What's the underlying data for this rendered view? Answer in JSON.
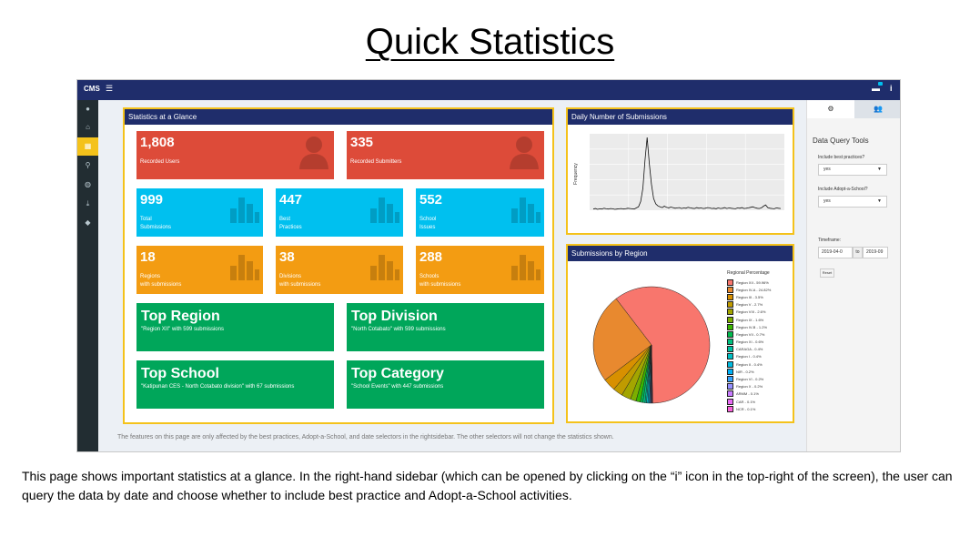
{
  "slide": {
    "title": "Quick Statistics",
    "description": "This page shows important statistics at a glance. In the right-hand sidebar (which can be opened by clicking on the “i” icon in the top-right of the screen), the user can query the data by date and choose whether to include best practice and Adopt-a-School activities."
  },
  "app": {
    "brand": "CMS",
    "menu_icon": "hamburger-icon",
    "info_icon": "info-icon",
    "notification_icon": "notification-icon"
  },
  "sidebar": {
    "items": [
      {
        "icon": "circle-icon"
      },
      {
        "icon": "home-icon"
      },
      {
        "icon": "dashboard-icon",
        "active": true
      },
      {
        "icon": "search-icon"
      },
      {
        "icon": "globe-icon"
      },
      {
        "icon": "download-icon"
      },
      {
        "icon": "tag-icon"
      }
    ]
  },
  "stats": {
    "header": "Statistics at a Glance",
    "users": {
      "value": "1,808",
      "label": "Recorded Users"
    },
    "submitters": {
      "value": "335",
      "label": "Recorded Submitters"
    },
    "total_submissions": {
      "value": "999",
      "line1": "Total",
      "line2": "Submissions"
    },
    "best_practices": {
      "value": "447",
      "line1": "Best",
      "line2": "Practices"
    },
    "school_issues": {
      "value": "552",
      "line1": "School",
      "line2": "Issues"
    },
    "regions": {
      "value": "18",
      "line1": "Regions",
      "line2": "with submissions"
    },
    "divisions": {
      "value": "38",
      "line1": "Divisions",
      "line2": "with submissions"
    },
    "schools": {
      "value": "288",
      "line1": "Schools",
      "line2": "with submissions"
    },
    "top_region": {
      "title": "Top Region",
      "sub": "\"Region XII\" with 599 submissions"
    },
    "top_division": {
      "title": "Top Division",
      "sub": "\"North Cotabato\" with 599 submissions"
    },
    "top_school": {
      "title": "Top School",
      "sub": "\"Katipunan CES - North Cotabato division\" with 67 submissions"
    },
    "top_category": {
      "title": "Top Category",
      "sub": "\"School Events\" with 447 submissions"
    }
  },
  "footer_note": "The features on this page are only affected by the best practices, Adopt-a-School, and date selectors in the rightsidebar. The other selectors will not change the statistics shown.",
  "daily": {
    "header": "Daily Number of Submissions",
    "ylabel": "Frequency"
  },
  "region_chart": {
    "header": "Submissions by Region",
    "legend_title": "Regional Percentage"
  },
  "chart_data": [
    {
      "type": "line",
      "title": "Daily Number of Submissions",
      "ylabel": "Frequency",
      "xlabel": "",
      "y": [
        4,
        6,
        3,
        5,
        4,
        7,
        5,
        4,
        6,
        5,
        3,
        4,
        5,
        6,
        4,
        5,
        7,
        6,
        5,
        4,
        8,
        12,
        30,
        75,
        170,
        250,
        160,
        90,
        40,
        22,
        15,
        12,
        9,
        14,
        10,
        8,
        11,
        9,
        7,
        8,
        9,
        6,
        8,
        7,
        10,
        8,
        7,
        6,
        9,
        7,
        8,
        6,
        7,
        9,
        8,
        6,
        7,
        5,
        8,
        6,
        7,
        9,
        6,
        8,
        7,
        6,
        5,
        8,
        7,
        9,
        6,
        7,
        8,
        10,
        12,
        9,
        7,
        6,
        8,
        14,
        18,
        9,
        7,
        6,
        5,
        8,
        7,
        6
      ]
    },
    {
      "type": "pie",
      "title": "Submissions by Region",
      "legend_title": "Regional Percentage",
      "slices": [
        {
          "label": "Region XII - 59.96%",
          "value": 59.96,
          "color": "#f8766d"
        },
        {
          "label": "Region IV-A - 24.82%",
          "value": 24.82,
          "color": "#e8892f"
        },
        {
          "label": "Region III - 3.5%",
          "value": 3.5,
          "color": "#d89000"
        },
        {
          "label": "Region V - 2.7%",
          "value": 2.7,
          "color": "#c09b00"
        },
        {
          "label": "Region VIII - 2.6%",
          "value": 2.6,
          "color": "#a3a500"
        },
        {
          "label": "Region IX - 1.6%",
          "value": 1.6,
          "color": "#7cae00"
        },
        {
          "label": "Region IV-B - 1.2%",
          "value": 1.2,
          "color": "#39b600"
        },
        {
          "label": "Region VII - 0.7%",
          "value": 0.7,
          "color": "#00bb4e"
        },
        {
          "label": "Region XI - 0.6%",
          "value": 0.6,
          "color": "#00bf7d"
        },
        {
          "label": "CARAGA - 0.4%",
          "value": 0.4,
          "color": "#00c1a3"
        },
        {
          "label": "Region I - 0.4%",
          "value": 0.4,
          "color": "#00bfc4"
        },
        {
          "label": "Region II - 0.4%",
          "value": 0.4,
          "color": "#00bae0"
        },
        {
          "label": "NIR - 0.2%",
          "value": 0.2,
          "color": "#00b0f6"
        },
        {
          "label": "Region VI - 0.2%",
          "value": 0.2,
          "color": "#35a2ff"
        },
        {
          "label": "Region X - 0.2%",
          "value": 0.2,
          "color": "#9590ff"
        },
        {
          "label": "ARMM - 0.1%",
          "value": 0.1,
          "color": "#c77cff"
        },
        {
          "label": "CAR - 0.1%",
          "value": 0.1,
          "color": "#e76bf3"
        },
        {
          "label": "NCR - 0.1%",
          "value": 0.1,
          "color": "#fa62db"
        }
      ]
    }
  ],
  "right_sidebar": {
    "tab1_icon": "gear-icon",
    "tab2_icon": "users-icon",
    "title": "Data Query Tools",
    "best_practices_label": "Include best practices?",
    "best_practices_value": "yes",
    "adopt_label": "Include Adopt-a-School?",
    "adopt_value": "yes",
    "timeframe_label": "Timeframe:",
    "date_from": "2019-04-0",
    "date_to_label": "to",
    "date_to": "2019-09",
    "reset_label": "Reset"
  }
}
